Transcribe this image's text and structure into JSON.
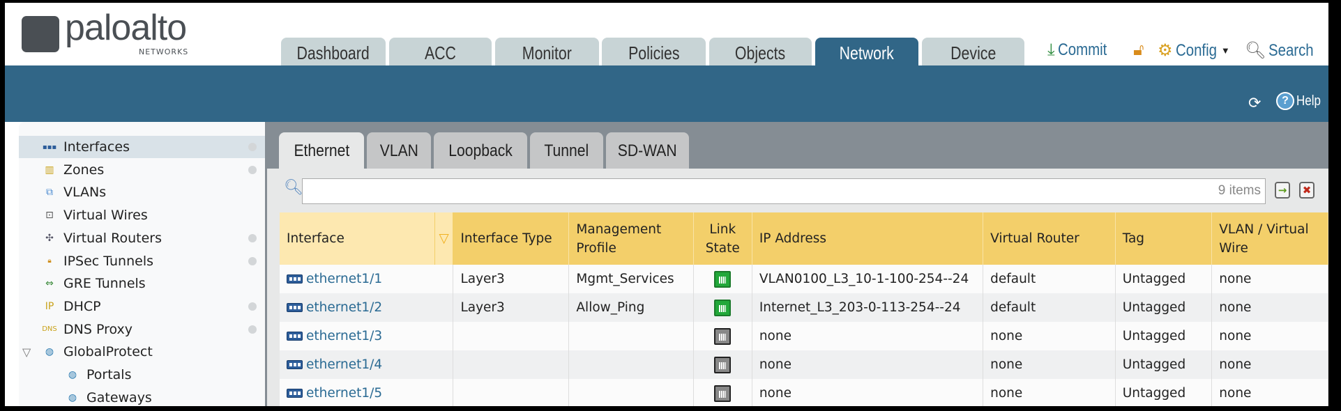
{
  "brand": {
    "name": "paloalto",
    "sub": "NETWORKS"
  },
  "main_tabs": [
    {
      "label": "Dashboard"
    },
    {
      "label": "ACC"
    },
    {
      "label": "Monitor"
    },
    {
      "label": "Policies"
    },
    {
      "label": "Objects"
    },
    {
      "label": "Network",
      "active": true
    },
    {
      "label": "Device"
    }
  ],
  "header_actions": {
    "commit": "Commit",
    "config": "Config",
    "search": "Search",
    "help": "Help"
  },
  "sidebar": {
    "items": [
      {
        "label": "Interfaces",
        "icon": "interfaces-icon",
        "dot": true,
        "selected": true
      },
      {
        "label": "Zones",
        "icon": "zones-icon",
        "dot": true
      },
      {
        "label": "VLANs",
        "icon": "vlans-icon"
      },
      {
        "label": "Virtual Wires",
        "icon": "virtual-wires-icon"
      },
      {
        "label": "Virtual Routers",
        "icon": "virtual-routers-icon",
        "dot": true
      },
      {
        "label": "IPSec Tunnels",
        "icon": "ipsec-tunnels-icon",
        "dot": true
      },
      {
        "label": "GRE Tunnels",
        "icon": "gre-tunnels-icon"
      },
      {
        "label": "DHCP",
        "icon": "dhcp-icon",
        "dot": true
      },
      {
        "label": "DNS Proxy",
        "icon": "dns-proxy-icon",
        "dot": true
      },
      {
        "label": "GlobalProtect",
        "icon": "globalprotect-icon",
        "expanded": true
      },
      {
        "label": "Portals",
        "icon": "portals-icon",
        "child": true
      },
      {
        "label": "Gateways",
        "icon": "gateways-icon",
        "child": true
      }
    ]
  },
  "sub_tabs": [
    {
      "label": "Ethernet",
      "active": true
    },
    {
      "label": "VLAN"
    },
    {
      "label": "Loopback"
    },
    {
      "label": "Tunnel"
    },
    {
      "label": "SD-WAN"
    }
  ],
  "filter": {
    "value": "",
    "count": "9 items"
  },
  "colors": {
    "accent": "#316687",
    "header_yellow": "#f3cf6a",
    "link_up": "#22a83a",
    "link_down": "#888888"
  },
  "table": {
    "columns": [
      "Interface",
      "",
      "Interface Type",
      "Management Profile",
      "Link State",
      "IP Address",
      "Virtual Router",
      "Tag",
      "VLAN / Virtual Wire"
    ],
    "rows": [
      {
        "interface": "ethernet1/1",
        "type": "Layer3",
        "profile": "Mgmt_Services",
        "link": "up",
        "ip": "VLAN0100_L3_10-1-100-254--24",
        "vr": "default",
        "tag": "Untagged",
        "vlan": "none"
      },
      {
        "interface": "ethernet1/2",
        "type": "Layer3",
        "profile": "Allow_Ping",
        "link": "up",
        "ip": "Internet_L3_203-0-113-254--24",
        "vr": "default",
        "tag": "Untagged",
        "vlan": "none"
      },
      {
        "interface": "ethernet1/3",
        "type": "",
        "profile": "",
        "link": "down",
        "ip": "none",
        "vr": "none",
        "tag": "Untagged",
        "vlan": "none"
      },
      {
        "interface": "ethernet1/4",
        "type": "",
        "profile": "",
        "link": "down",
        "ip": "none",
        "vr": "none",
        "tag": "Untagged",
        "vlan": "none"
      },
      {
        "interface": "ethernet1/5",
        "type": "",
        "profile": "",
        "link": "down",
        "ip": "none",
        "vr": "none",
        "tag": "Untagged",
        "vlan": "none"
      }
    ]
  }
}
